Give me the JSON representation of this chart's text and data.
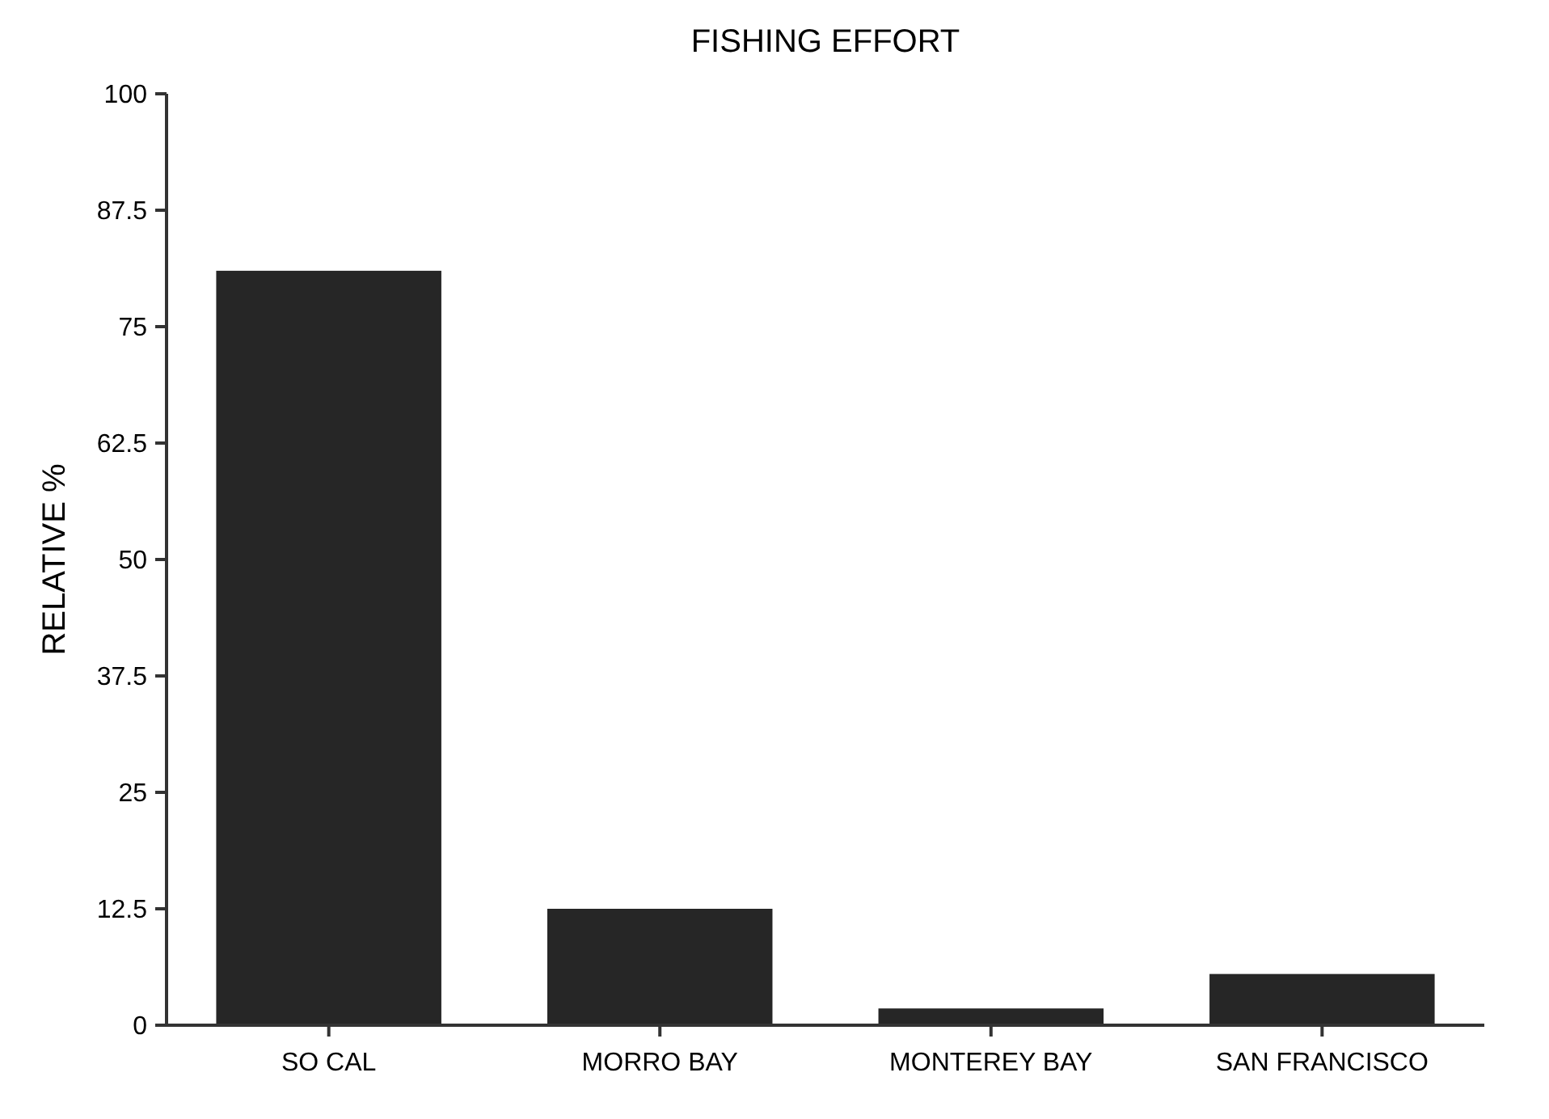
{
  "chart_data": {
    "type": "bar",
    "title": "FISHING EFFORT",
    "ylabel": "RELATIVE %",
    "categories": [
      "SO CAL",
      "MORRO BAY",
      "MONTEREY BAY",
      "SAN FRANCISCO"
    ],
    "values": [
      81,
      12.5,
      1.8,
      5.5
    ],
    "color": "#262626",
    "ylim": [
      0,
      100
    ],
    "yticks": [
      0,
      12.5,
      25,
      37.5,
      50,
      62.5,
      75,
      87.5,
      100
    ],
    "grid": false
  }
}
